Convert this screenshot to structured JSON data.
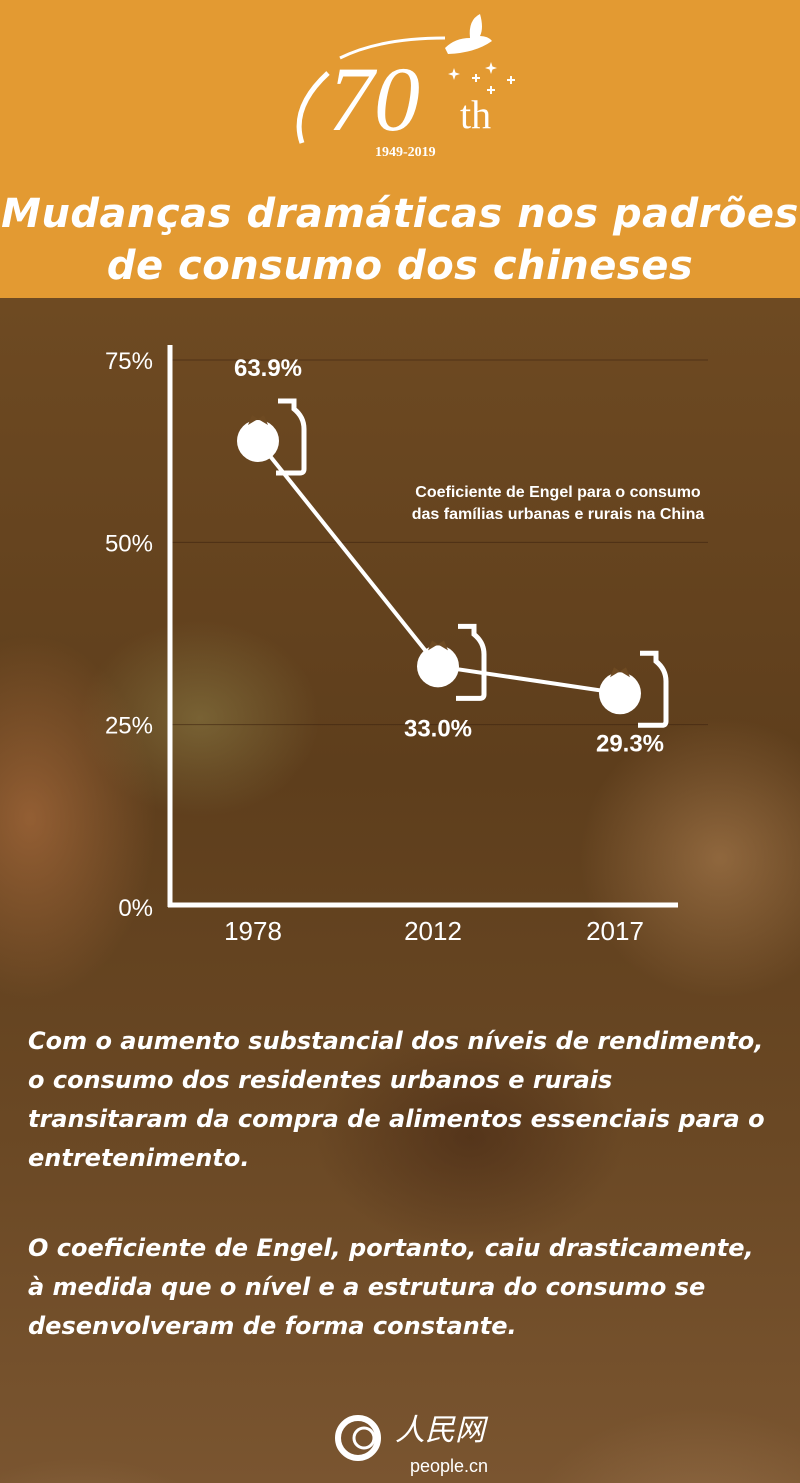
{
  "header": {
    "logo_text": "70th",
    "logo_years": "1949-2019",
    "title_line1": "Mudanças dramáticas nos padrões",
    "title_line2": "de consumo dos chineses",
    "background_color": "#E39A32"
  },
  "chart_data": {
    "type": "line",
    "title": "Coeficiente de Engel para o consumo das famílias urbanas e rurais na China",
    "title_line1": "Coeficiente de Engel para o consumo",
    "title_line2": "das famílias urbanas e rurais na China",
    "categories": [
      "1978",
      "2012",
      "2017"
    ],
    "values": [
      63.9,
      33.0,
      29.3
    ],
    "data_labels": [
      "63.9%",
      "33.0%",
      "29.3%"
    ],
    "yticks": [
      "0%",
      "25%",
      "50%",
      "75%"
    ],
    "ytick_values": [
      0,
      25,
      50,
      75
    ],
    "ylim": [
      0,
      75
    ],
    "grid": true,
    "marker_icons": [
      "tomato-icon",
      "bottle-icon"
    ],
    "line_color": "#ffffff"
  },
  "body": {
    "paragraph1": "Com o aumento substancial dos níveis de rendimento, o consumo dos residentes urbanos e rurais transitaram da compra de alimentos essenciais para o entretenimento.",
    "paragraph2": "O coeficiente de Engel, portanto, caiu drasticamente, à medida que o nível e a estrutura do consumo se desenvolveram de forma constante."
  },
  "footer": {
    "logo_chinese": "人民网",
    "logo_url_text": "people.cn"
  }
}
